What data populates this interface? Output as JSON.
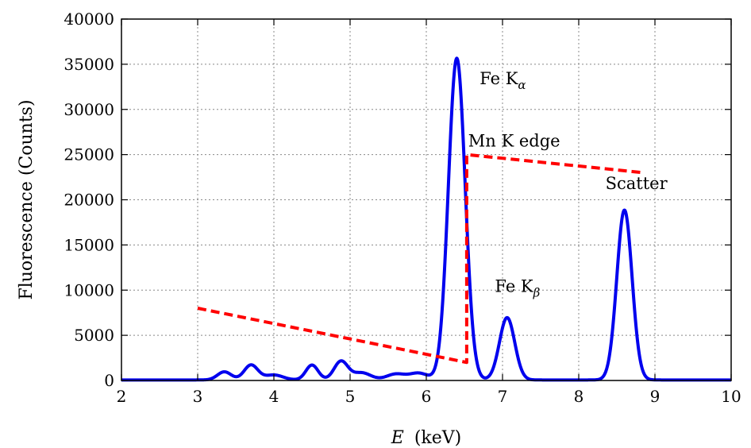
{
  "chart_data": {
    "type": "line",
    "xlabel_var": "E",
    "xlabel_unit": "(keV)",
    "ylabel": "Fluorescence (Counts)",
    "xlim": [
      2,
      10
    ],
    "ylim": [
      0,
      40000
    ],
    "grid": true,
    "x_ticks": [
      2,
      3,
      4,
      5,
      6,
      7,
      8,
      9,
      10
    ],
    "y_ticks": [
      0,
      5000,
      10000,
      15000,
      20000,
      25000,
      30000,
      35000,
      40000
    ],
    "series": [
      {
        "style": "solid",
        "color": "#0000ee",
        "peaks": [
          {
            "center": 3.35,
            "height": 900,
            "width": 0.09
          },
          {
            "center": 3.7,
            "height": 1650,
            "width": 0.09
          },
          {
            "center": 4.0,
            "height": 550,
            "width": 0.12
          },
          {
            "center": 4.5,
            "height": 1650,
            "width": 0.08
          },
          {
            "center": 4.88,
            "height": 2050,
            "width": 0.09
          },
          {
            "center": 5.15,
            "height": 800,
            "width": 0.12
          },
          {
            "center": 5.6,
            "height": 650,
            "width": 0.12
          },
          {
            "center": 5.9,
            "height": 750,
            "width": 0.12
          },
          {
            "center": 6.4,
            "height": 35600,
            "width": 0.11
          },
          {
            "center": 7.06,
            "height": 6900,
            "width": 0.1
          },
          {
            "center": 8.6,
            "height": 18800,
            "width": 0.1
          }
        ]
      },
      {
        "style": "dashed",
        "color": "#ff0000",
        "x": [
          3.0,
          6.53,
          6.53,
          8.85
        ],
        "y": [
          8000,
          2000,
          25000,
          23000
        ]
      }
    ],
    "annotations": [
      {
        "text": "Fe K",
        "sub": "α",
        "x": 6.7,
        "y": 32800
      },
      {
        "text": "Mn K edge",
        "x": 6.55,
        "y": 25900
      },
      {
        "text": "Scatter",
        "x": 8.35,
        "y": 21200
      },
      {
        "text": "Fe K",
        "sub": "β",
        "x": 6.9,
        "y": 9800
      }
    ],
    "colors": {
      "fluorescence": "#0000ee",
      "edge": "#ff0000"
    }
  }
}
